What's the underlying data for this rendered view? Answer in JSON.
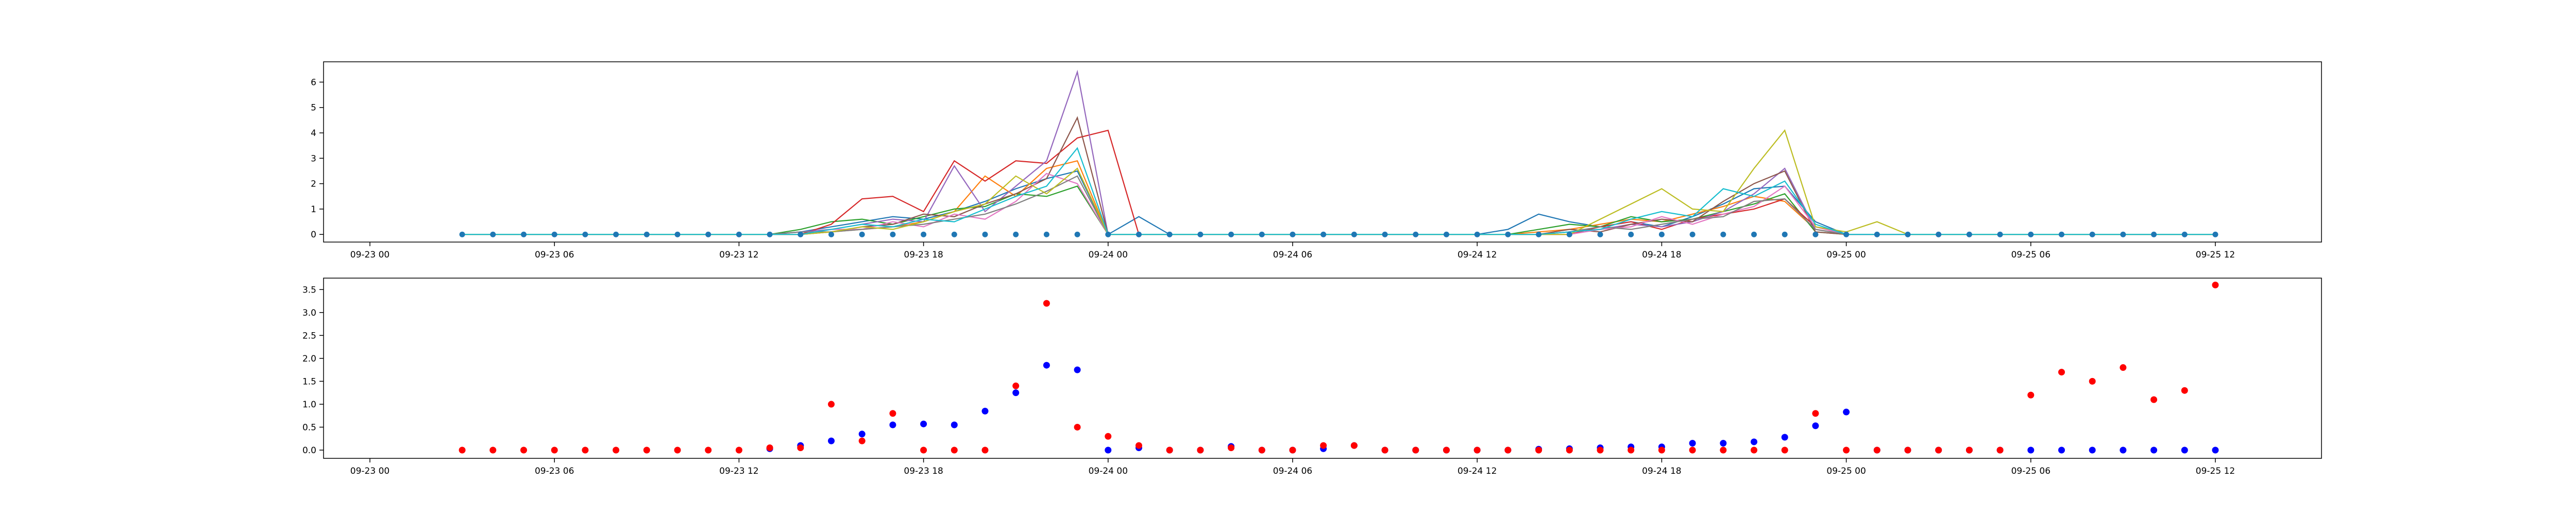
{
  "chart_data": [
    {
      "type": "line",
      "title": "",
      "xlabel": "",
      "ylabel": "",
      "x_ticks": [
        "09-23 00",
        "09-23 06",
        "09-23 12",
        "09-23 18",
        "09-24 00",
        "09-24 06",
        "09-24 12",
        "09-24 18",
        "09-25 00",
        "09-25 06",
        "09-25 12"
      ],
      "ylim": [
        -0.3,
        6.8
      ],
      "y_ticks": [
        0,
        1,
        2,
        3,
        4,
        5,
        6
      ],
      "grid": false,
      "legend": "none",
      "note_series": "dozens of overlapping colored series with spikes around 09-23 13h to 09-24 00h and 09-24 13h to 09-25 01h",
      "x_hours": [
        3,
        4,
        5,
        6,
        7,
        8,
        9,
        10,
        11,
        12,
        13,
        14,
        15,
        16,
        17,
        18,
        19,
        20,
        21,
        22,
        23,
        24,
        25,
        26,
        27,
        28,
        29,
        30,
        31,
        32,
        33,
        34,
        35,
        36,
        37,
        38,
        39,
        40,
        41,
        42,
        43,
        44,
        45,
        46,
        47,
        48,
        49,
        50,
        51,
        52,
        53,
        54,
        55,
        56,
        57,
        58,
        59,
        60
      ],
      "series": [
        {
          "color": "#1f77b4",
          "values": [
            0,
            0,
            0,
            0,
            0,
            0,
            0,
            0,
            0,
            0,
            0,
            0.1,
            0.3,
            0.5,
            0.7,
            0.6,
            0.9,
            1.3,
            1.8,
            2.2,
            2.5,
            0,
            0.7,
            0,
            0,
            0,
            0,
            0,
            0,
            0,
            0,
            0,
            0,
            0,
            0.2,
            0.8,
            0.5,
            0.3,
            0.5,
            0.3,
            0.7,
            1.2,
            1.8,
            1.9,
            0.5,
            0,
            0,
            0,
            0,
            0,
            0,
            0,
            0,
            0,
            0,
            0,
            0,
            0
          ]
        },
        {
          "color": "#ff7f0e",
          "values": [
            0,
            0,
            0,
            0,
            0,
            0,
            0,
            0,
            0,
            0,
            0,
            0,
            0.1,
            0.2,
            0.3,
            0.5,
            0.9,
            2.3,
            1.5,
            2.6,
            2.9,
            0,
            0,
            0,
            0,
            0,
            0,
            0,
            0,
            0,
            0,
            0,
            0,
            0,
            0,
            0.1,
            0.2,
            0.4,
            0.6,
            0.5,
            0.8,
            1.1,
            1.5,
            1.3,
            0.2,
            0,
            0,
            0,
            0,
            0,
            0,
            0,
            0,
            0,
            0,
            0,
            0,
            0
          ]
        },
        {
          "color": "#2ca02c",
          "values": [
            0,
            0,
            0,
            0,
            0,
            0,
            0,
            0,
            0,
            0,
            0,
            0.2,
            0.5,
            0.6,
            0.4,
            0.7,
            1.0,
            1.1,
            1.6,
            1.5,
            1.9,
            0,
            0,
            0,
            0,
            0,
            0,
            0,
            0,
            0,
            0,
            0,
            0,
            0,
            0,
            0.2,
            0.4,
            0.3,
            0.7,
            0.5,
            0.6,
            0.9,
            1.2,
            1.6,
            0.1,
            0,
            0,
            0,
            0,
            0,
            0,
            0,
            0,
            0,
            0,
            0,
            0,
            0
          ]
        },
        {
          "color": "#d62728",
          "values": [
            0,
            0,
            0,
            0,
            0,
            0,
            0,
            0,
            0,
            0,
            0,
            0,
            0.4,
            1.4,
            1.5,
            0.9,
            2.9,
            2.1,
            2.9,
            2.8,
            3.8,
            4.1,
            0,
            0,
            0,
            0,
            0,
            0,
            0,
            0,
            0,
            0,
            0,
            0,
            0,
            0,
            0,
            0.3,
            0.5,
            0.2,
            0.6,
            0.8,
            1.0,
            1.4,
            0.3,
            0,
            0,
            0,
            0,
            0,
            0,
            0,
            0,
            0,
            0,
            0,
            0,
            0
          ]
        },
        {
          "color": "#9467bd",
          "values": [
            0,
            0,
            0,
            0,
            0,
            0,
            0,
            0,
            0,
            0,
            0,
            0.1,
            0.2,
            0.4,
            0.6,
            0.5,
            2.7,
            0.9,
            1.9,
            2.9,
            6.4,
            0,
            0,
            0,
            0,
            0,
            0,
            0,
            0,
            0,
            0,
            0,
            0,
            0,
            0,
            0,
            0.1,
            0.2,
            0.4,
            0.3,
            0.5,
            0.9,
            1.6,
            2.6,
            0.2,
            0,
            0,
            0,
            0,
            0,
            0,
            0,
            0,
            0,
            0,
            0,
            0,
            0
          ]
        },
        {
          "color": "#8c564b",
          "values": [
            0,
            0,
            0,
            0,
            0,
            0,
            0,
            0,
            0,
            0,
            0,
            0,
            0.1,
            0.3,
            0.4,
            0.8,
            0.7,
            1.2,
            1.6,
            2.2,
            4.6,
            0,
            0,
            0,
            0,
            0,
            0,
            0,
            0,
            0,
            0,
            0,
            0,
            0,
            0,
            0,
            0.2,
            0.1,
            0.4,
            0.6,
            0.5,
            1.3,
            2.0,
            2.5,
            0.1,
            0,
            0,
            0,
            0,
            0,
            0,
            0,
            0,
            0,
            0,
            0,
            0,
            0
          ]
        },
        {
          "color": "#e377c2",
          "values": [
            0,
            0,
            0,
            0,
            0,
            0,
            0,
            0,
            0,
            0,
            0,
            0,
            0.2,
            0.2,
            0.5,
            0.3,
            0.8,
            0.6,
            1.3,
            2.4,
            2.0,
            0,
            0,
            0,
            0,
            0,
            0,
            0,
            0,
            0,
            0,
            0,
            0,
            0,
            0,
            0,
            0,
            0.2,
            0.3,
            0.7,
            0.4,
            0.8,
            1.1,
            1.9,
            0.3,
            0,
            0,
            0,
            0,
            0,
            0,
            0,
            0,
            0,
            0,
            0,
            0,
            0
          ]
        },
        {
          "color": "#7f7f7f",
          "values": [
            0,
            0,
            0,
            0,
            0,
            0,
            0,
            0,
            0,
            0,
            0,
            0.1,
            0.1,
            0.2,
            0.3,
            0.4,
            0.6,
            0.8,
            1.2,
            1.7,
            2.3,
            0,
            0,
            0,
            0,
            0,
            0,
            0,
            0,
            0,
            0,
            0,
            0,
            0,
            0,
            0,
            0.1,
            0.3,
            0.2,
            0.4,
            0.6,
            0.7,
            1.3,
            1.4,
            0.2,
            0,
            0,
            0,
            0,
            0,
            0,
            0,
            0,
            0,
            0,
            0,
            0,
            0
          ]
        },
        {
          "color": "#bcbd22",
          "values": [
            0,
            0,
            0,
            0,
            0,
            0,
            0,
            0,
            0,
            0,
            0,
            0,
            0.1,
            0.3,
            0.2,
            0.5,
            0.9,
            1.2,
            2.3,
            1.6,
            2.6,
            0,
            0,
            0,
            0,
            0,
            0,
            0,
            0,
            0,
            0,
            0,
            0,
            0,
            0,
            0,
            0,
            0.6,
            1.2,
            1.8,
            1.0,
            0.9,
            2.6,
            4.1,
            0.3,
            0.1,
            0.5,
            0,
            0,
            0,
            0,
            0,
            0,
            0,
            0,
            0,
            0,
            0
          ]
        },
        {
          "color": "#17becf",
          "values": [
            0,
            0,
            0,
            0,
            0,
            0,
            0,
            0,
            0,
            0,
            0,
            0,
            0.2,
            0.4,
            0.3,
            0.6,
            0.5,
            1.0,
            1.5,
            1.9,
            3.4,
            0,
            0,
            0,
            0,
            0,
            0,
            0,
            0,
            0,
            0,
            0,
            0,
            0,
            0,
            0,
            0.1,
            0.2,
            0.6,
            0.9,
            0.7,
            1.8,
            1.5,
            2.1,
            0.4,
            0,
            0,
            0,
            0,
            0,
            0,
            0,
            0,
            0,
            0,
            0,
            0,
            0
          ]
        }
      ],
      "markers": {
        "color": "#1f77b4",
        "value": 0,
        "note": "blue dots at every hour along y=0"
      }
    },
    {
      "type": "scatter",
      "title": "",
      "xlabel": "",
      "ylabel": "",
      "x_ticks": [
        "09-23 00",
        "09-23 06",
        "09-23 12",
        "09-23 18",
        "09-24 00",
        "09-24 06",
        "09-24 12",
        "09-24 18",
        "09-25 00",
        "09-25 06",
        "09-25 12"
      ],
      "ylim": [
        -0.18,
        3.75
      ],
      "y_ticks": [
        "0.0",
        "0.5",
        "1.0",
        "1.5",
        "2.0",
        "2.5",
        "3.0",
        "3.5"
      ],
      "grid": false,
      "legend": "none",
      "series": [
        {
          "color": "#0000ff",
          "x_hours": [
            13,
            14,
            15,
            16,
            17,
            18,
            19,
            20,
            21,
            22,
            23,
            24,
            25,
            26,
            27,
            28,
            29,
            30,
            31,
            32,
            33,
            34,
            35,
            36,
            37,
            38,
            39,
            40,
            41,
            42,
            43,
            44,
            45,
            46,
            47,
            48,
            49,
            50,
            51,
            52,
            53,
            54,
            55,
            56,
            57,
            58,
            59,
            60
          ],
          "values": [
            0.03,
            0.1,
            0.2,
            0.35,
            0.55,
            0.57,
            0.55,
            0.85,
            1.25,
            1.85,
            1.75,
            0,
            0.05,
            0,
            0,
            0.08,
            0,
            0,
            0.03,
            0.1,
            0,
            0,
            0,
            0,
            0,
            0.02,
            0.03,
            0.05,
            0.07,
            0.07,
            0.15,
            0.15,
            0.18,
            0.28,
            0.53,
            0.83,
            0,
            0,
            0,
            0,
            0,
            0,
            0,
            0,
            0,
            0,
            0,
            0
          ]
        },
        {
          "color": "#ff0000",
          "x_hours": [
            3,
            4,
            5,
            6,
            7,
            8,
            9,
            10,
            11,
            12,
            13,
            14,
            15,
            16,
            17,
            18,
            19,
            20,
            21,
            22,
            23,
            24,
            25,
            26,
            27,
            28,
            29,
            30,
            31,
            32,
            33,
            34,
            35,
            36,
            37,
            38,
            39,
            40,
            41,
            42,
            43,
            44,
            45,
            46,
            47,
            48,
            49,
            50,
            51,
            52,
            53,
            54,
            55,
            56,
            57,
            58,
            59,
            60
          ],
          "values": [
            0,
            0,
            0,
            0,
            0,
            0,
            0,
            0,
            0,
            0,
            0.05,
            0.05,
            1.0,
            0.2,
            0.8,
            0,
            0,
            0,
            1.4,
            3.2,
            0.5,
            0.3,
            0.1,
            0,
            0,
            0.05,
            0,
            0,
            0.1,
            0.1,
            0,
            0,
            0,
            0,
            0,
            0,
            0,
            0,
            0,
            0,
            0,
            0,
            0,
            0,
            0.8,
            0,
            0,
            0,
            0,
            0,
            0,
            1.2,
            1.7,
            1.5,
            1.8,
            1.1,
            1.3,
            3.6
          ]
        }
      ]
    }
  ]
}
